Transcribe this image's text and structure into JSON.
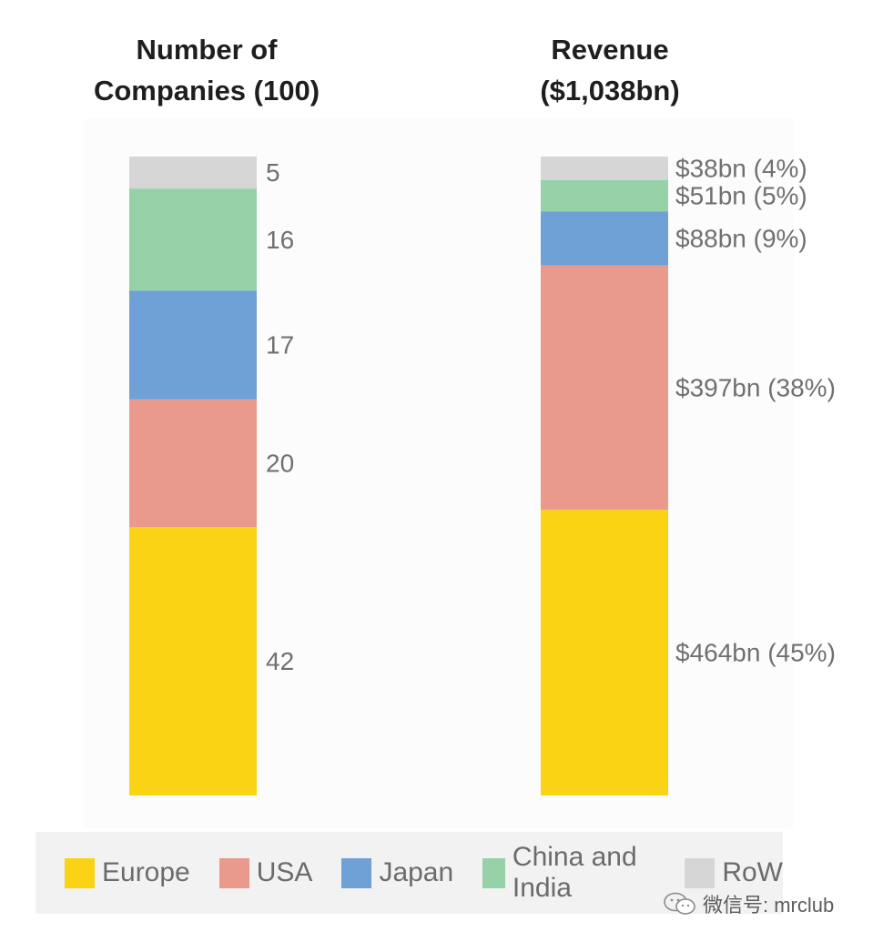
{
  "chart_data": [
    {
      "type": "bar",
      "stacked": true,
      "title": "Number of\nCompanies (100)",
      "series": [
        {
          "name": "Europe",
          "value": 42,
          "label": "42",
          "color": "#f9d314"
        },
        {
          "name": "USA",
          "value": 20,
          "label": "20",
          "color": "#ea9a8d"
        },
        {
          "name": "Japan",
          "value": 17,
          "label": "17",
          "color": "#6fa0d6"
        },
        {
          "name": "China and India",
          "value": 16,
          "label": "16",
          "color": "#97d1a8"
        },
        {
          "name": "RoW",
          "value": 5,
          "label": "5",
          "color": "#d6d6d6"
        }
      ]
    },
    {
      "type": "bar",
      "stacked": true,
      "title": "Revenue\n($1,038bn)",
      "series": [
        {
          "name": "Europe",
          "value": 464,
          "label": "$464bn (45%)",
          "color": "#f9d314"
        },
        {
          "name": "USA",
          "value": 397,
          "label": "$397bn (38%)",
          "color": "#ea9a8d"
        },
        {
          "name": "Japan",
          "value": 88,
          "label": "$88bn (9%)",
          "color": "#6fa0d6"
        },
        {
          "name": "China and India",
          "value": 51,
          "label": "$51bn (5%)",
          "color": "#97d1a8"
        },
        {
          "name": "RoW",
          "value": 38,
          "label": "$38bn (4%)",
          "color": "#d6d6d6"
        }
      ]
    }
  ],
  "legend": [
    {
      "label": "Europe",
      "color": "#f9d314"
    },
    {
      "label": "USA",
      "color": "#ea9a8d"
    },
    {
      "label": "Japan",
      "color": "#6fa0d6"
    },
    {
      "label": "China and India",
      "color": "#97d1a8"
    },
    {
      "label": "RoW",
      "color": "#d6d6d6"
    }
  ],
  "watermark": {
    "text": "微信号: mrclub",
    "icon": "wechat-icon"
  }
}
